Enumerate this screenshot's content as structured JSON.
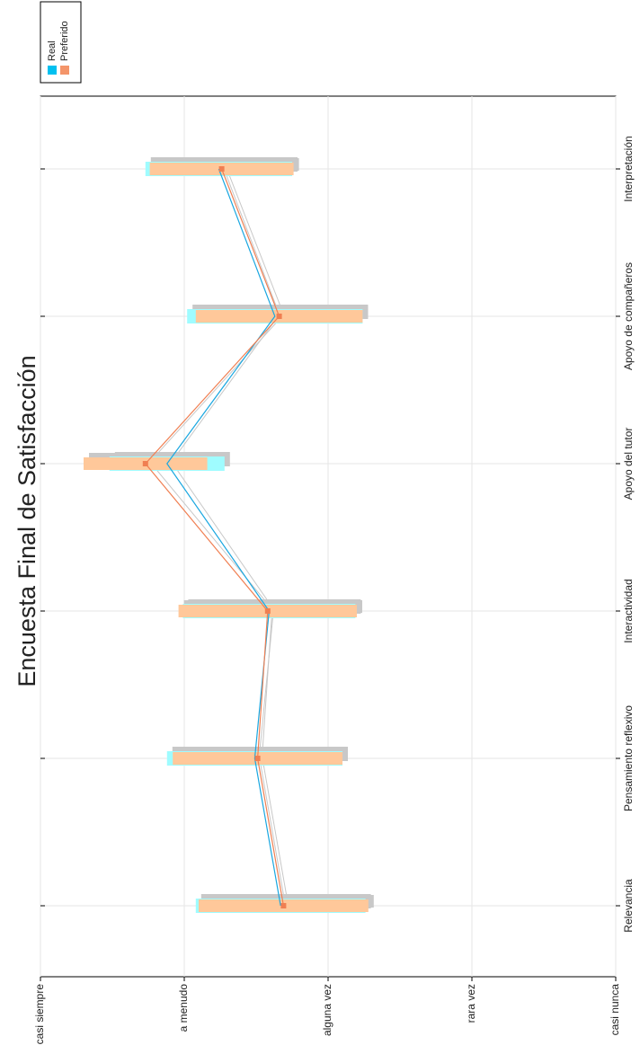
{
  "chart_data": {
    "type": "line",
    "title": "Encuesta Final de Satisfacción",
    "categories": [
      "Relevancia",
      "Pensamiento reflexivo",
      "Interactividad",
      "Apoyo del tutor",
      "Apoyo de compañeros",
      "Interpretación"
    ],
    "series": [
      {
        "name": "Real",
        "color": "#1aa7e0",
        "bar_color": "#9ffcff",
        "legend_color": "#00c0f0",
        "values": [
          2.67,
          2.49,
          2.59,
          1.88,
          2.63,
          2.24
        ],
        "errors": [
          0.59,
          0.61,
          0.6,
          0.4,
          0.61,
          0.51
        ]
      },
      {
        "name": "Preferido",
        "color": "#f07f52",
        "bar_color": "#ffc89a",
        "legend_color": "#f4956a",
        "values": [
          2.69,
          2.51,
          2.58,
          1.73,
          2.66,
          2.26
        ],
        "errors": [
          0.59,
          0.59,
          0.62,
          0.43,
          0.58,
          0.5
        ]
      }
    ],
    "ylim": [
      1,
      5
    ],
    "yticks": [
      {
        "value": 1,
        "label": "casi siempre"
      },
      {
        "value": 2,
        "label": "a menudo"
      },
      {
        "value": 3,
        "label": "alguna vez"
      },
      {
        "value": 4,
        "label": "rara vez"
      },
      {
        "value": 5,
        "label": "casi nunca"
      }
    ],
    "grid": true,
    "legend": "top-left"
  }
}
